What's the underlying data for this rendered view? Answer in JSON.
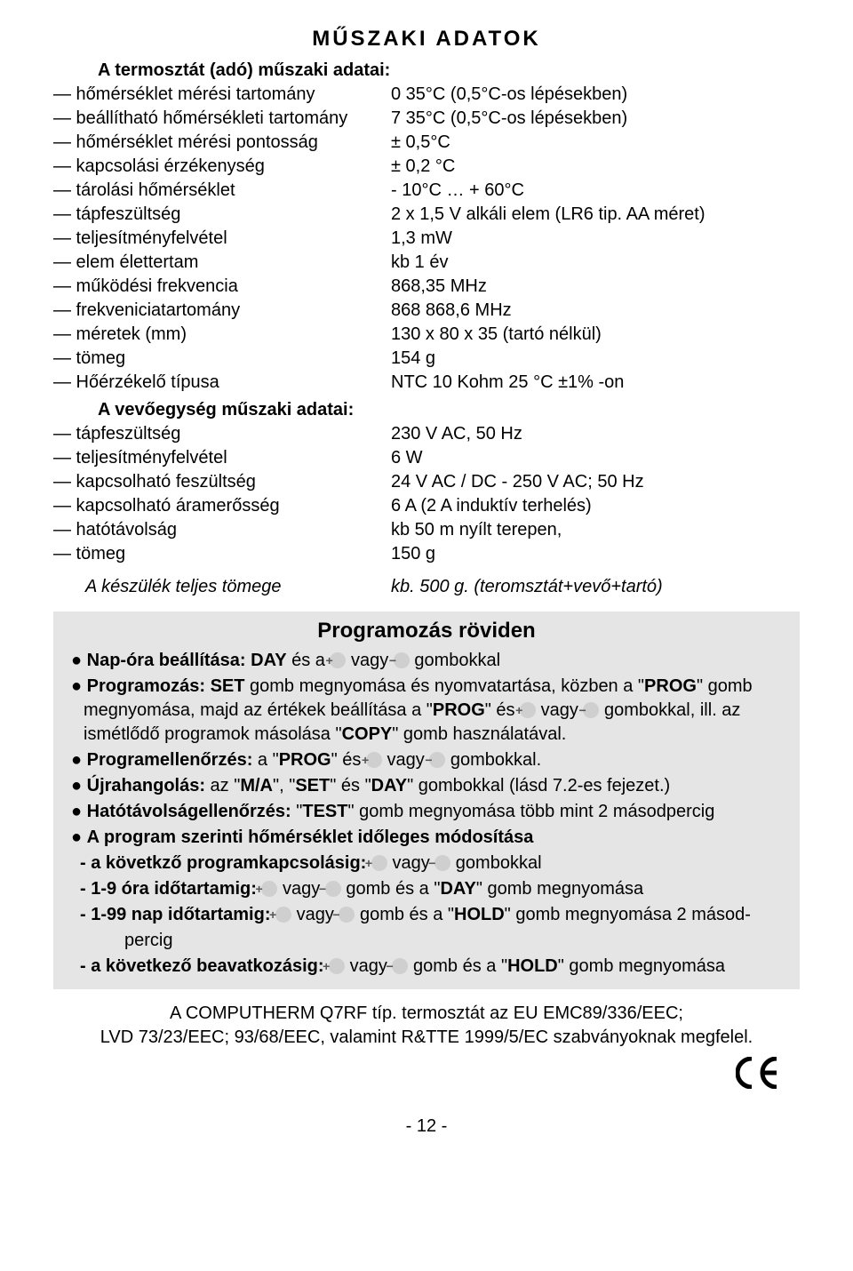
{
  "title": "MŰSZAKI ADATOK",
  "thermo": {
    "heading": "A termosztát (adó) műszaki adatai:",
    "rows": [
      {
        "label": "— hőmérséklet mérési tartomány",
        "value": "0  35°C (0,5°C-os lépésekben)"
      },
      {
        "label": "— beállítható hőmérsékleti tartomány",
        "value": "7  35°C (0,5°C-os lépésekben)"
      },
      {
        "label": "— hőmérséklet mérési pontosság",
        "value": "± 0,5°C"
      },
      {
        "label": "— kapcsolási érzékenység",
        "value": "± 0,2 °C"
      },
      {
        "label": "— tárolási hőmérséklet",
        "value": "- 10°C …  + 60°C"
      },
      {
        "label": "— tápfeszültség",
        "value": "2 x 1,5 V alkáli elem (LR6 tip. AA méret)"
      },
      {
        "label": "— teljesítményfelvétel",
        "value": "1,3 mW"
      },
      {
        "label": "— elem élettertam",
        "value": "kb 1  év"
      },
      {
        "label": "— működési frekvencia",
        "value": "868,35 MHz"
      },
      {
        "label": "— frekveniciatartomány",
        "value": "868  868,6 MHz"
      },
      {
        "label": "— méretek (mm)",
        "value": "130 x 80 x 35 (tartó nélkül)"
      },
      {
        "label": "— tömeg",
        "value": "154 g"
      },
      {
        "label": "— Hőérzékelő típusa",
        "value": "NTC  10 Kohm  25 °C  ±1% -on"
      }
    ]
  },
  "receiver": {
    "heading": "A vevőegység műszaki adatai:",
    "rows": [
      {
        "label": "— tápfeszültség",
        "value": "230 V AC, 50 Hz"
      },
      {
        "label": "— teljesítményfelvétel",
        "value": "6 W"
      },
      {
        "label": "— kapcsolható feszültség",
        "value": "24 V AC / DC - 250 V AC; 50 Hz"
      },
      {
        "label": "— kapcsolható áramerősség",
        "value": "6 A (2 A induktív terhelés)"
      },
      {
        "label": "— hatótávolság",
        "value": "kb 50 m nyílt terepen,"
      },
      {
        "label": "— tömeg",
        "value": "150 g"
      }
    ]
  },
  "total": {
    "label": "A készülék teljes tömege",
    "value": "kb. 500 g. (teromsztát+vevő+tartó)"
  },
  "prog": {
    "title": "Programozás röviden",
    "t_napOra_1": "Nap-óra beállítása: DAY",
    "t_napOra_2": " és a ",
    "t_vagy": " vagy ",
    "t_gombokkal": "  gombokkal",
    "t_prog_1": "Programozás: SET",
    "t_prog_2": " gomb megnyomása és nyomvatartása, közben a \"",
    "t_prog_3": "PROG",
    "t_prog_4": "\" gomb megnyomása, majd az értékek beállítása a \"",
    "t_prog_5": "\" és ",
    "t_prog_6": " gombokkal, ill. az ismétlődő programok másolása \"",
    "t_copy": "COPY",
    "t_prog_7": "\" gomb  használatával.",
    "t_pe_1": "Programellenőrzés:",
    "t_pe_2": " a \"",
    "t_pe_3": "\" és ",
    "t_pe_4": "  gombokkal.",
    "t_uj_1": "Újrahangolás:",
    "t_uj_2": " az \"",
    "t_ma": "M/A",
    "t_uj_3": "\", \"",
    "t_set": "SET",
    "t_uj_4": "\" és \"",
    "t_day": "DAY",
    "t_uj_5": "\" gombokkal (lásd 7.2-es fejezet.)",
    "t_ht_1": "Hatótávolságellenőrzés:",
    "t_ht_2": " \"",
    "t_test": "TEST",
    "t_ht_3": "\" gomb megnyomása több mint 2 másodpercig",
    "t_ps_1": "A program szerinti hőmérséklet időleges módosítása",
    "t_sub1_1": "- a követkző programkapcsolásig: ",
    "t_sub1_2": "  gombokkal",
    "t_sub2_1": "- 1-9 óra időtartamig:  ",
    "t_sub2_2": "  gomb és a \"",
    "t_sub2_3": "\" gomb megnyomása",
    "t_sub3_1": "- 1-99 nap időtartamig: ",
    "t_sub3_2": "  gomb és a \"",
    "t_hold": "HOLD",
    "t_sub3_3": "\" gomb megnyomása 2 másod-",
    "t_sub3_4": "percig",
    "t_sub4_1": "- a következő beavatkozásig: ",
    "t_sub4_2": "  gomb és a \"",
    "t_sub4_3": "\" gomb megnyomása"
  },
  "footer1": "A COMPUTHERM Q7RF típ. termosztát az EU EMC89/336/EEC;",
  "footer2": "LVD 73/23/EEC; 93/68/EEC, valamint R&TTE 1999/5/EC szabványoknak megfelel.",
  "pageNum": "- 12 -"
}
